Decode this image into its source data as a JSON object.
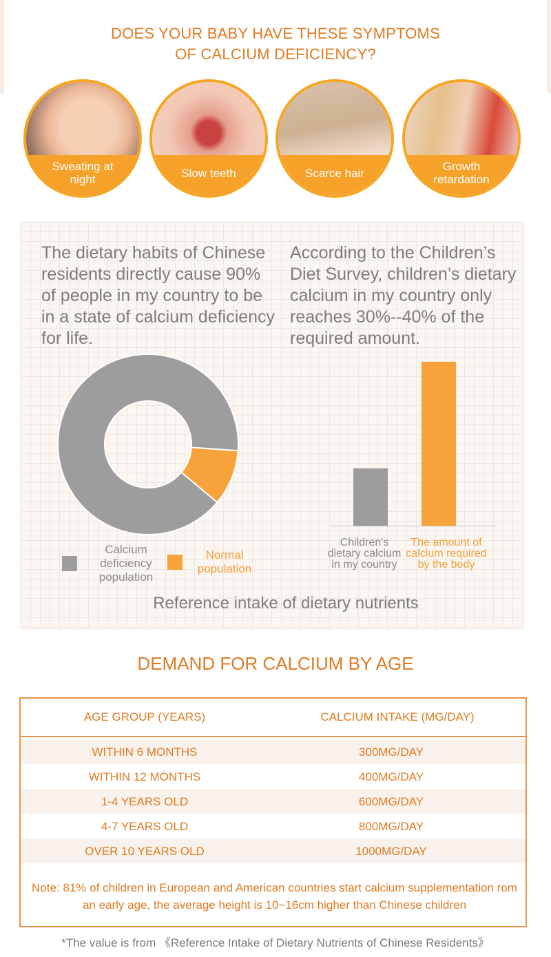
{
  "header": {
    "title_line1": "DOES YOUR BABY HAVE THESE SYMPTOMS",
    "title_line2": "OF CALCIUM DEFICIENCY?"
  },
  "symptoms": [
    {
      "label": "Sweating at night"
    },
    {
      "label": "Slow teeth"
    },
    {
      "label": "Scarce hair"
    },
    {
      "label": "Growth retardation"
    }
  ],
  "panel": {
    "left_text": "The dietary habits of Chinese residents directly cause 90% of people in my country to be in a state of calcium deficiency for life.",
    "right_text": "According to the Children’s Diet Survey, children’s dietary calcium in my country only reaches 30%--40% of the required amount.",
    "caption": "Reference intake of dietary nutrients"
  },
  "chart_data": [
    {
      "type": "pie",
      "variant": "donut",
      "series": [
        {
          "name": "Calcium deficiency population",
          "value": 90,
          "color": "#9d9d9e"
        },
        {
          "name": "Normal population",
          "value": 10,
          "color": "#f7a23a"
        }
      ],
      "legend_placement": "bottom"
    },
    {
      "type": "bar",
      "categories": [
        "Children's dietary calcium in my country",
        "The amount of calcium required by the body"
      ],
      "values": [
        35,
        100
      ],
      "colors": [
        "#9d9d9e",
        "#f7a23a"
      ],
      "ylim": [
        0,
        100
      ],
      "grid": false
    }
  ],
  "demand": {
    "title": "DEMAND FOR CALCIUM BY AGE",
    "col_age": "AGE GROUP (YEARS)",
    "col_intake": "CALCIUM INTAKE (MG/DAY)",
    "rows": [
      {
        "age": "WITHIN 6 MONTHS",
        "intake": "300MG/DAY"
      },
      {
        "age": "WITHIN 12 MONTHS",
        "intake": "400MG/DAY"
      },
      {
        "age": "1-4 YEARS OLD",
        "intake": "600MG/DAY"
      },
      {
        "age": "4-7 YEARS OLD",
        "intake": "800MG/DAY"
      },
      {
        "age": "OVER 10 YEARS OLD",
        "intake": "1000MG/DAY"
      }
    ],
    "note": "Note: 81% of children in European and American countries start calcium supplementation rom an early age, the average height is 10~16cm higher than Chinese children"
  },
  "footnote": "*The value is from 《Reference Intake of Dietary Nutrients of Chinese Residents》",
  "colors": {
    "accent": "#e07a22",
    "orange": "#f7a23a",
    "grey": "#9d9d9e"
  }
}
